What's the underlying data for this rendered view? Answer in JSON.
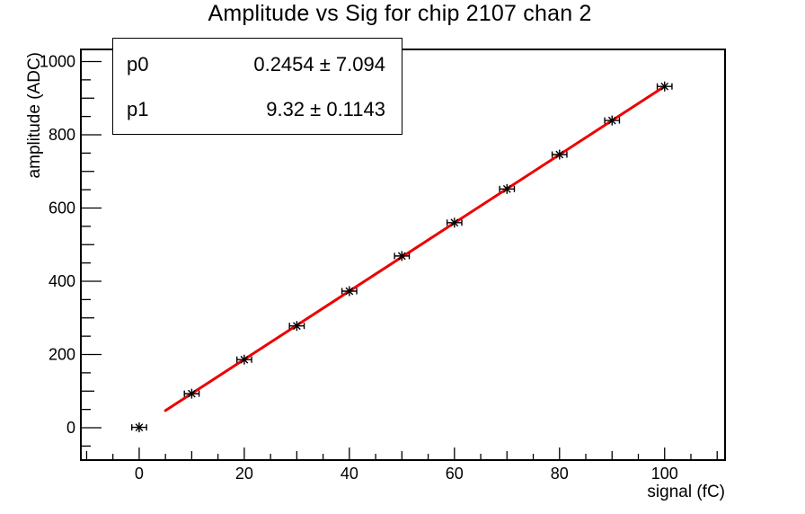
{
  "title": "Amplitude vs Sig for chip 2107 chan 2",
  "stats_box": {
    "rows": [
      {
        "param": "p0",
        "value": "0.2454 ± 7.094"
      },
      {
        "param": "p1",
        "value": "9.32 ± 0.1143"
      }
    ]
  },
  "chart_data": {
    "type": "scatter",
    "title": "Amplitude vs Sig for chip 2107 chan 2",
    "xlabel": "signal (fC)",
    "ylabel": "amplitude (ADC)",
    "x": [
      0,
      10,
      20,
      30,
      40,
      50,
      60,
      70,
      80,
      90,
      100
    ],
    "y": [
      1,
      93,
      186,
      278,
      373,
      469,
      560,
      652,
      746,
      839,
      932
    ],
    "x_err": 1.4,
    "marker": "star-with-xerr",
    "fit": {
      "type": "linear",
      "p0": 0.2454,
      "p0_err": 7.094,
      "p1": 9.32,
      "p1_err": 0.1143,
      "line_range": [
        5,
        100
      ]
    },
    "xlim": [
      -11.1,
      111.5
    ],
    "ylim": [
      -88.3,
      1033.1
    ],
    "xticks": {
      "minor_step": 5,
      "medium_step": 10,
      "major_step": 20,
      "label_values": [
        0,
        20,
        40,
        60,
        80,
        100
      ],
      "labels": [
        "0",
        "20",
        "40",
        "60",
        "80",
        "100"
      ]
    },
    "yticks": {
      "minor_step": 50,
      "medium_step": 100,
      "major_step": 200,
      "label_values": [
        0,
        200,
        400,
        600,
        800,
        1000
      ],
      "labels": [
        "0",
        "200",
        "400",
        "600",
        "800",
        "1000"
      ]
    },
    "grid": false,
    "legend": false
  },
  "colors": {
    "background": "#ffffff",
    "frame": "#000000",
    "marker": "#000000",
    "fit_line": "#ee0000",
    "text": "#000000"
  }
}
